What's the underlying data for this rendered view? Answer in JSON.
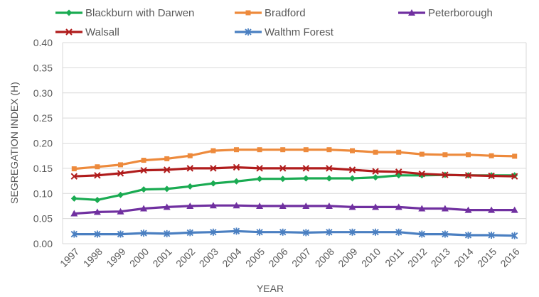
{
  "chart_data": {
    "type": "line",
    "xlabel": "YEAR",
    "ylabel": "SEGREGATION INDEX (H)",
    "ylim": [
      0,
      0.4
    ],
    "yticks": [
      "0.00",
      "0.05",
      "0.10",
      "0.15",
      "0.20",
      "0.25",
      "0.30",
      "0.35",
      "0.40"
    ],
    "grid": true,
    "legend_position": "top",
    "x": [
      "1997",
      "1998",
      "1999",
      "2000",
      "2001",
      "2002",
      "2003",
      "2004",
      "2005",
      "2006",
      "2007",
      "2008",
      "2009",
      "2010",
      "2011",
      "2012",
      "2013",
      "2014",
      "2015",
      "2016"
    ],
    "series": [
      {
        "name": "Blackburn with Darwen",
        "color": "#1aab52",
        "marker": "diamond",
        "values": [
          0.09,
          0.087,
          0.097,
          0.108,
          0.109,
          0.114,
          0.12,
          0.124,
          0.129,
          0.129,
          0.13,
          0.13,
          0.13,
          0.132,
          0.136,
          0.136,
          0.137,
          0.136,
          0.136,
          0.136
        ]
      },
      {
        "name": "Bradford",
        "color": "#ed8a3c",
        "marker": "square",
        "values": [
          0.149,
          0.153,
          0.157,
          0.166,
          0.169,
          0.175,
          0.185,
          0.187,
          0.187,
          0.187,
          0.187,
          0.187,
          0.185,
          0.182,
          0.182,
          0.178,
          0.177,
          0.177,
          0.175,
          0.174
        ]
      },
      {
        "name": "Peterborough",
        "color": "#7030a0",
        "marker": "triangle",
        "values": [
          0.06,
          0.063,
          0.064,
          0.07,
          0.073,
          0.075,
          0.076,
          0.076,
          0.075,
          0.075,
          0.075,
          0.075,
          0.073,
          0.073,
          0.073,
          0.07,
          0.07,
          0.067,
          0.067,
          0.067
        ]
      },
      {
        "name": "Walsall",
        "color": "#b01c1c",
        "marker": "x",
        "values": [
          0.134,
          0.136,
          0.14,
          0.146,
          0.147,
          0.15,
          0.15,
          0.152,
          0.15,
          0.15,
          0.15,
          0.15,
          0.147,
          0.144,
          0.143,
          0.139,
          0.137,
          0.136,
          0.135,
          0.134
        ]
      },
      {
        "name": "Walthm Forest",
        "color": "#4a7fc1",
        "marker": "star",
        "values": [
          0.019,
          0.019,
          0.019,
          0.021,
          0.02,
          0.022,
          0.023,
          0.025,
          0.023,
          0.023,
          0.022,
          0.023,
          0.023,
          0.023,
          0.023,
          0.019,
          0.019,
          0.017,
          0.017,
          0.016
        ]
      }
    ]
  }
}
